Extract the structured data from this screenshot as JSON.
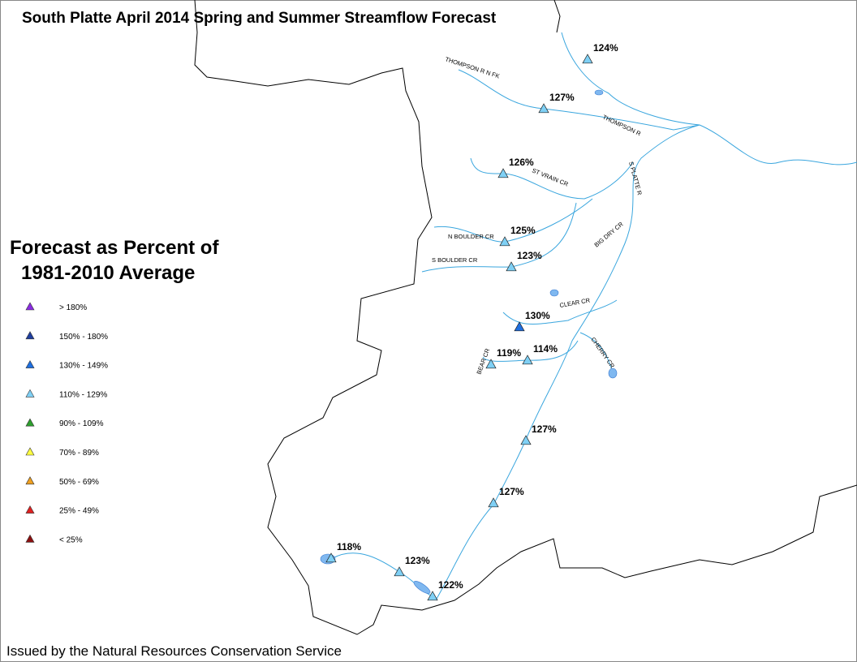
{
  "header": {
    "title": "South Platte April 2014 Spring and Summer Streamflow Forecast"
  },
  "legend": {
    "title": [
      "Forecast as Percent of",
      "1981-2010 Average"
    ],
    "items": [
      {
        "label": "> 180%",
        "color": "#8a2be2"
      },
      {
        "label": "150% - 180%",
        "color": "#1f3f9f"
      },
      {
        "label": "130% - 149%",
        "color": "#1e6fe0"
      },
      {
        "label": "110% - 129%",
        "color": "#7fd0f5"
      },
      {
        "label": "90% - 109%",
        "color": "#2e9f2e"
      },
      {
        "label": "70% - 89%",
        "color": "#ffff40"
      },
      {
        "label": "50% - 69%",
        "color": "#f0a020"
      },
      {
        "label": "25% - 49%",
        "color": "#e02020"
      },
      {
        "label": "< 25%",
        "color": "#8b1010"
      }
    ]
  },
  "stations": [
    {
      "label": "124%",
      "color": "#7fd0f5"
    },
    {
      "label": "127%",
      "color": "#7fd0f5"
    },
    {
      "label": "126%",
      "color": "#7fd0f5"
    },
    {
      "label": "125%",
      "color": "#7fd0f5"
    },
    {
      "label": "123%",
      "color": "#7fd0f5"
    },
    {
      "label": "130%",
      "color": "#1e6fe0"
    },
    {
      "label": "119%",
      "color": "#7fd0f5"
    },
    {
      "label": "114%",
      "color": "#7fd0f5"
    },
    {
      "label": "127%",
      "color": "#7fd0f5"
    },
    {
      "label": "127%",
      "color": "#7fd0f5"
    },
    {
      "label": "118%",
      "color": "#7fd0f5"
    },
    {
      "label": "123%",
      "color": "#7fd0f5"
    },
    {
      "label": "122%",
      "color": "#7fd0f5"
    }
  ],
  "rivers": [
    "THOMPSON R N FK",
    "THOMPSON R",
    "ST VRAIN CR",
    "N BOULDER CR",
    "S BOULDER CR",
    "BIG DRY CR",
    "CLEAR CR",
    "BEAR CR",
    "CHERRY CR",
    "S PLATTE R"
  ],
  "footer": {
    "text": "Issued by the Natural Resources Conservation Service"
  }
}
